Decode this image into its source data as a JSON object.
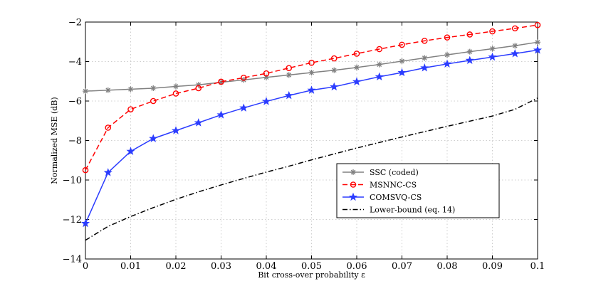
{
  "chart_data": {
    "type": "line",
    "title": "",
    "xlabel": "Bit cross-over probability ε",
    "ylabel": "Normalized MSE (dB)",
    "xlim": [
      0,
      0.1
    ],
    "ylim": [
      -14,
      -2
    ],
    "xticks": [
      0,
      0.01,
      0.02,
      0.03,
      0.04,
      0.05,
      0.06,
      0.07,
      0.08,
      0.09,
      0.1
    ],
    "xtick_labels": [
      "0",
      "0.01",
      "0.02",
      "0.03",
      "0.04",
      "0.05",
      "0.06",
      "0.07",
      "0.08",
      "0.09",
      "0.1"
    ],
    "yticks": [
      -14,
      -12,
      -10,
      -8,
      -6,
      -4,
      -2
    ],
    "ytick_labels": [
      "−14",
      "−12",
      "−10",
      "−8",
      "−6",
      "−4",
      "−2"
    ],
    "grid": true,
    "legend_position": "lower-right",
    "series": [
      {
        "name": "SSC (coded)",
        "color": "#808080",
        "marker": "asterisk",
        "dash": "solid",
        "x": [
          0,
          0.005,
          0.01,
          0.015,
          0.02,
          0.025,
          0.03,
          0.035,
          0.04,
          0.045,
          0.05,
          0.055,
          0.06,
          0.065,
          0.07,
          0.075,
          0.08,
          0.085,
          0.09,
          0.095,
          0.1
        ],
        "y": [
          -5.5,
          -5.45,
          -5.4,
          -5.35,
          -5.26,
          -5.18,
          -5.05,
          -4.93,
          -4.8,
          -4.68,
          -4.56,
          -4.44,
          -4.3,
          -4.15,
          -3.98,
          -3.82,
          -3.66,
          -3.5,
          -3.35,
          -3.2,
          -3.02
        ]
      },
      {
        "name": "MSNNC-CS",
        "color": "#ff0000",
        "marker": "circle",
        "dash": "dashed",
        "x": [
          0,
          0.005,
          0.01,
          0.015,
          0.02,
          0.025,
          0.03,
          0.035,
          0.04,
          0.045,
          0.05,
          0.055,
          0.06,
          0.065,
          0.07,
          0.075,
          0.08,
          0.085,
          0.09,
          0.095,
          0.1
        ],
        "y": [
          -9.5,
          -7.35,
          -6.42,
          -6.0,
          -5.62,
          -5.35,
          -5.02,
          -4.82,
          -4.6,
          -4.33,
          -4.06,
          -3.84,
          -3.6,
          -3.37,
          -3.15,
          -2.95,
          -2.78,
          -2.63,
          -2.47,
          -2.32,
          -2.15
        ]
      },
      {
        "name": "COMSVQ-CS",
        "color": "#2b3cff",
        "marker": "star",
        "dash": "solid",
        "x": [
          0,
          0.005,
          0.01,
          0.015,
          0.02,
          0.025,
          0.03,
          0.035,
          0.04,
          0.045,
          0.05,
          0.055,
          0.06,
          0.065,
          0.07,
          0.075,
          0.08,
          0.085,
          0.09,
          0.095,
          0.1
        ],
        "y": [
          -12.2,
          -9.62,
          -8.55,
          -7.9,
          -7.5,
          -7.1,
          -6.7,
          -6.35,
          -6.02,
          -5.72,
          -5.45,
          -5.28,
          -5.02,
          -4.77,
          -4.56,
          -4.32,
          -4.12,
          -3.94,
          -3.77,
          -3.6,
          -3.42
        ]
      },
      {
        "name": "Lower-bound (eq. 14)",
        "color": "#000000",
        "marker": "none",
        "dash": "dashdot",
        "x": [
          0,
          0.005,
          0.01,
          0.015,
          0.02,
          0.025,
          0.03,
          0.035,
          0.04,
          0.045,
          0.05,
          0.055,
          0.06,
          0.065,
          0.07,
          0.075,
          0.08,
          0.085,
          0.09,
          0.095,
          0.1
        ],
        "y": [
          -13.05,
          -12.35,
          -11.85,
          -11.4,
          -10.98,
          -10.6,
          -10.25,
          -9.92,
          -9.6,
          -9.3,
          -8.98,
          -8.68,
          -8.38,
          -8.1,
          -7.82,
          -7.55,
          -7.28,
          -7.02,
          -6.76,
          -6.42,
          -5.85
        ]
      }
    ]
  }
}
